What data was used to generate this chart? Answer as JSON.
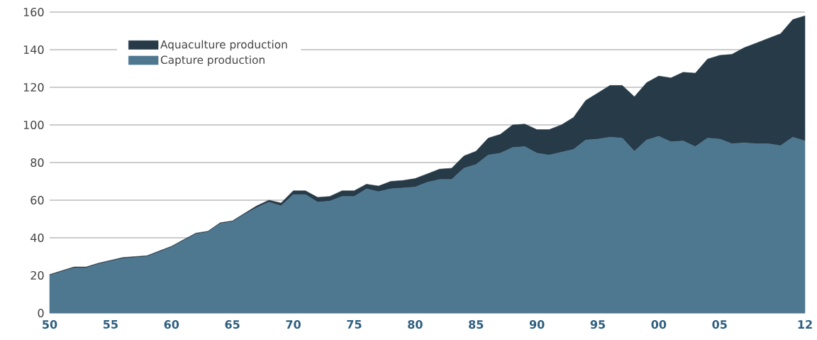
{
  "chart_data": {
    "type": "area",
    "stacked": true,
    "x": [
      1950,
      1951,
      1952,
      1953,
      1954,
      1955,
      1956,
      1957,
      1958,
      1959,
      1960,
      1961,
      1962,
      1963,
      1964,
      1965,
      1966,
      1967,
      1968,
      1969,
      1970,
      1971,
      1972,
      1973,
      1974,
      1975,
      1976,
      1977,
      1978,
      1979,
      1980,
      1981,
      1982,
      1983,
      1984,
      1985,
      1986,
      1987,
      1988,
      1989,
      1990,
      1991,
      1992,
      1993,
      1994,
      1995,
      1996,
      1997,
      1998,
      1999,
      2000,
      2001,
      2002,
      2003,
      2004,
      2005,
      2006,
      2007,
      2008,
      2009,
      2010,
      2011,
      2012
    ],
    "series": [
      {
        "name": "Capture production",
        "color": "#4e7790",
        "values": [
          20,
          22,
          24,
          24,
          26,
          27.5,
          29,
          29.5,
          30,
          32.5,
          35,
          38.5,
          42,
          43,
          47.5,
          48.5,
          52.5,
          56,
          59,
          57,
          63,
          63,
          59,
          59.5,
          62,
          62,
          66,
          64.5,
          66,
          66.5,
          67,
          69.5,
          71,
          71,
          77,
          79,
          84,
          85,
          88,
          88.5,
          85,
          84,
          85.5,
          87,
          92,
          92.5,
          93.5,
          93,
          86,
          92,
          94,
          91,
          91.5,
          88.5,
          93,
          92.5,
          90,
          90.5,
          90,
          90,
          89,
          93.5,
          91.5
        ]
      },
      {
        "name": "Aquaculture production",
        "color": "#263a47",
        "values": [
          0.5,
          0.5,
          0.5,
          0.5,
          0.5,
          0.5,
          0.5,
          0.5,
          0.5,
          0.5,
          0.5,
          0.5,
          0.5,
          0.5,
          0.5,
          0.5,
          0.5,
          1,
          1,
          1.5,
          2,
          2,
          2.5,
          2.5,
          3,
          3,
          2.5,
          3,
          4,
          4,
          4.5,
          4.5,
          5.5,
          6,
          6.5,
          7,
          9,
          10,
          12,
          12,
          12.5,
          13.5,
          14.5,
          17,
          21,
          24.5,
          27.5,
          28,
          29,
          30.5,
          32,
          34,
          36.5,
          39,
          42,
          44.5,
          47.5,
          50.5,
          53.5,
          56,
          59.5,
          62.5,
          66.5
        ]
      }
    ],
    "xlim": [
      1950,
      2012
    ],
    "xticks": [
      {
        "value": 1950,
        "label": "50"
      },
      {
        "value": 1955,
        "label": "55"
      },
      {
        "value": 1960,
        "label": "60"
      },
      {
        "value": 1965,
        "label": "65"
      },
      {
        "value": 1970,
        "label": "70"
      },
      {
        "value": 1975,
        "label": "75"
      },
      {
        "value": 1980,
        "label": "80"
      },
      {
        "value": 1985,
        "label": "85"
      },
      {
        "value": 1990,
        "label": "90"
      },
      {
        "value": 1995,
        "label": "95"
      },
      {
        "value": 2000,
        "label": "00"
      },
      {
        "value": 2005,
        "label": "05"
      },
      {
        "value": 2012,
        "label": "12"
      }
    ],
    "ylim": [
      0,
      160
    ],
    "yticks": [
      0,
      20,
      40,
      60,
      80,
      100,
      120,
      140,
      160
    ],
    "grid": "y",
    "legend": "top left"
  }
}
